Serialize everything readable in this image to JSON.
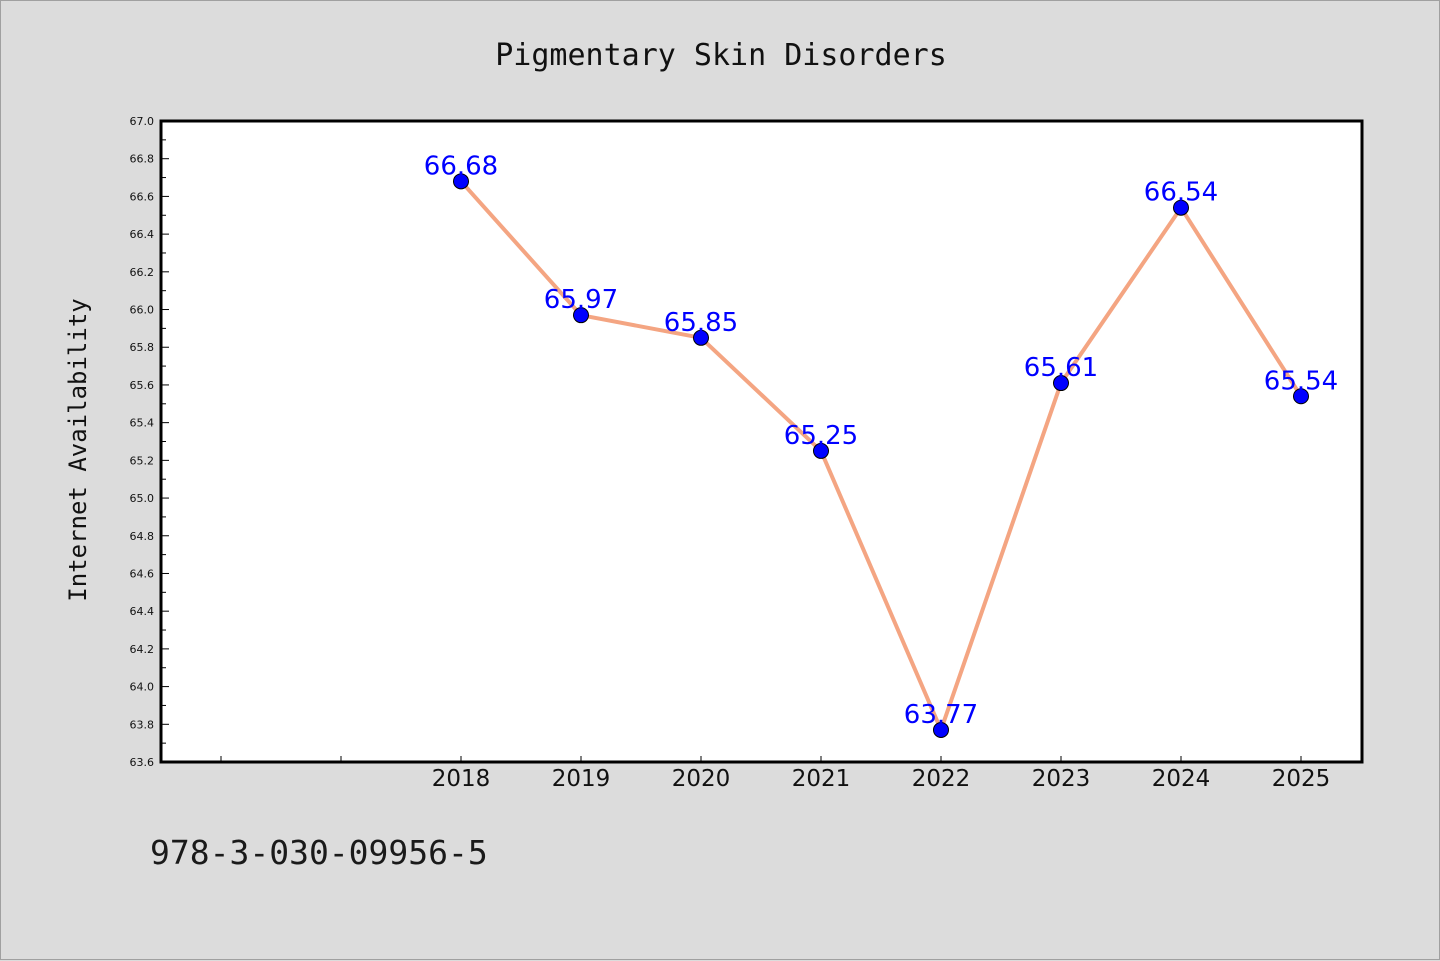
{
  "chart_data": {
    "type": "line",
    "title": "Pigmentary Skin Disorders",
    "xlabel": "",
    "ylabel": "Internet Availability",
    "x_ticks": [
      "",
      "",
      "2018",
      "2019",
      "2020",
      "2021",
      "2022",
      "2023",
      "2024",
      "2025"
    ],
    "categories": [
      "2018",
      "2019",
      "2020",
      "2021",
      "2022",
      "2023",
      "2024",
      "2025"
    ],
    "series": [
      {
        "values": [
          66.68,
          65.97,
          65.85,
          65.25,
          63.77,
          65.61,
          66.54,
          65.54
        ],
        "labels": [
          "66.68",
          "65.97",
          "65.85",
          "65.25",
          "63.77",
          "65.61",
          "66.54",
          "65.54"
        ]
      }
    ],
    "ylim": [
      63.6,
      67.0
    ],
    "yticks": [
      "63.6",
      "63.8",
      "64.0",
      "64.2",
      "64.4",
      "64.6",
      "64.8",
      "65.0",
      "65.2",
      "65.4",
      "65.6",
      "65.8",
      "66.0",
      "66.2",
      "66.4",
      "66.6",
      "66.8",
      "67.0"
    ],
    "grid": false,
    "line_color": "#f4a582",
    "marker_color": "#0000ff",
    "label_color": "#0000ff"
  },
  "footer": {
    "isbn": "978-3-030-09956-5"
  }
}
